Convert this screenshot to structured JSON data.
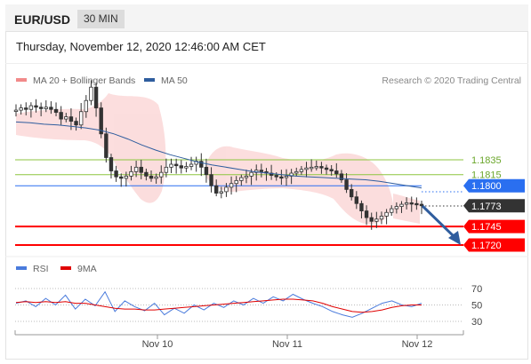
{
  "header": {
    "symbol": "EUR/USD",
    "timeframe": "30 MIN"
  },
  "datetime": "Thursday, November 12, 2020 12:46:00 AM CET",
  "legend": {
    "bollinger": "MA 20 + Bollinger Bands",
    "ma50": "MA 50",
    "credit": "Research © 2020 Trading Central"
  },
  "rsi_legend": {
    "rsi": "RSI",
    "ma9": "9MA"
  },
  "colors": {
    "bollinger": "#f28a8a",
    "ma50": "#2f5d9e",
    "rsi": "#4a7bdc",
    "ma9": "#e00000",
    "support": "#ff0000",
    "resistance": "#8dc63f",
    "pivot": "#2a6ff0",
    "current": "#333333",
    "arrow": "#2f5d9e"
  },
  "chart_data": [
    {
      "type": "candlestick",
      "title": "EUR/USD",
      "x_ticks": [
        "Nov 10",
        "Nov 11",
        "Nov 12"
      ],
      "ylim": [
        1.171,
        1.195
      ],
      "series": [
        {
          "name": "price",
          "values": [
            1.1902,
            1.1905,
            1.1903,
            1.1908,
            1.1906,
            1.1904,
            1.1906,
            1.1903,
            1.1899,
            1.189,
            1.1893,
            1.1887,
            1.1882,
            1.19,
            1.1915,
            1.1933,
            1.1905,
            1.187,
            1.1838,
            1.182,
            1.1812,
            1.181,
            1.1813,
            1.1819,
            1.1825,
            1.1818,
            1.1813,
            1.181,
            1.1812,
            1.1818,
            1.1825,
            1.1829,
            1.1827,
            1.1824,
            1.1826,
            1.1829,
            1.1833,
            1.1825,
            1.1815,
            1.18,
            1.179,
            1.1792,
            1.1798,
            1.1803,
            1.1807,
            1.1811,
            1.1813,
            1.1818,
            1.1821,
            1.1819,
            1.1817,
            1.1814,
            1.1812,
            1.1811,
            1.1813,
            1.1817,
            1.1819,
            1.1822,
            1.1824,
            1.1825,
            1.1826,
            1.1824,
            1.1822,
            1.182,
            1.1816,
            1.1808,
            1.1795,
            1.1785,
            1.1776,
            1.1766,
            1.1757,
            1.1752,
            1.1755,
            1.1759,
            1.1764,
            1.1769,
            1.1772,
            1.1775,
            1.1777,
            1.1776,
            1.1775,
            1.1773
          ]
        },
        {
          "name": "MA 50",
          "values": [
            1.1886,
            1.1885,
            1.1883,
            1.1882,
            1.188,
            1.1878,
            1.1875,
            1.187,
            1.1863,
            1.1855,
            1.1848,
            1.1842,
            1.1837,
            1.1832,
            1.1828,
            1.1825,
            1.1822,
            1.1819,
            1.1817,
            1.1815,
            1.1813,
            1.1812,
            1.1811,
            1.181,
            1.1809,
            1.1808,
            1.1806,
            1.1803,
            1.18,
            1.1797
          ]
        }
      ],
      "levels": [
        {
          "label": "1.1835",
          "type": "resistance"
        },
        {
          "label": "1.1815",
          "type": "resistance"
        },
        {
          "label": "1.1800",
          "type": "pivot"
        },
        {
          "label": "1.1773",
          "type": "current"
        },
        {
          "label": "1.1745",
          "type": "support"
        },
        {
          "label": "1.1720",
          "type": "support"
        }
      ],
      "legend": [
        "MA 20 + Bollinger Bands",
        "MA 50"
      ]
    },
    {
      "type": "line",
      "title": "RSI",
      "y_ticks": [
        70,
        50,
        30
      ],
      "ylim": [
        20,
        80
      ],
      "series": [
        {
          "name": "RSI",
          "values": [
            52,
            55,
            48,
            58,
            50,
            62,
            45,
            57,
            49,
            66,
            42,
            55,
            48,
            43,
            52,
            38,
            46,
            40,
            50,
            44,
            52,
            47,
            55,
            50,
            58,
            52,
            60,
            55,
            63,
            57,
            52,
            48,
            42,
            38,
            35,
            40,
            46,
            52,
            55,
            50,
            48,
            52
          ]
        },
        {
          "name": "9MA",
          "values": [
            53,
            54,
            53,
            54,
            53,
            54,
            52,
            52,
            50,
            48,
            46,
            45,
            45,
            44,
            44,
            45,
            46,
            47,
            48,
            49,
            50,
            51,
            52,
            53,
            54,
            55,
            56,
            57,
            57,
            56,
            55,
            52,
            48,
            45,
            42,
            41,
            42,
            44,
            47,
            49,
            50,
            50
          ]
        }
      ]
    }
  ]
}
